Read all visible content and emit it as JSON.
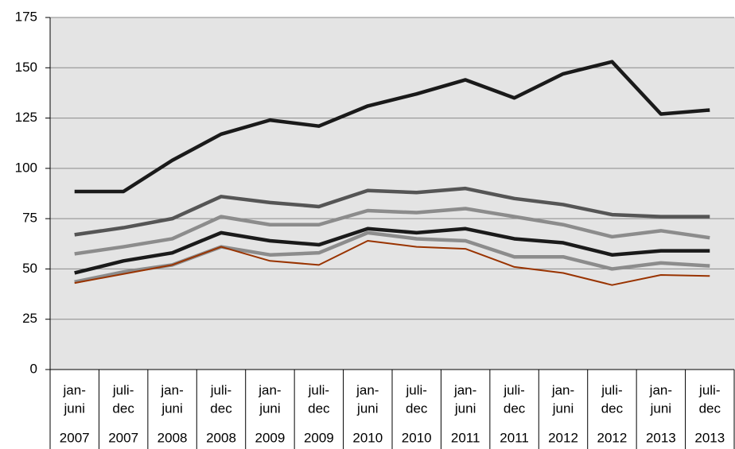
{
  "chart_data": {
    "type": "line",
    "categories": [
      {
        "period": [
          "jan-",
          "juni"
        ],
        "year": "2007"
      },
      {
        "period": [
          "juli-",
          "dec"
        ],
        "year": "2007"
      },
      {
        "period": [
          "jan-",
          "juni"
        ],
        "year": "2008"
      },
      {
        "period": [
          "juli-",
          "dec"
        ],
        "year": "2008"
      },
      {
        "period": [
          "jan-",
          "juni"
        ],
        "year": "2009"
      },
      {
        "period": [
          "juli-",
          "dec"
        ],
        "year": "2009"
      },
      {
        "period": [
          "jan-",
          "juni"
        ],
        "year": "2010"
      },
      {
        "period": [
          "juli-",
          "dec"
        ],
        "year": "2010"
      },
      {
        "period": [
          "jan-",
          "juni"
        ],
        "year": "2011"
      },
      {
        "period": [
          "juli-",
          "dec"
        ],
        "year": "2011"
      },
      {
        "period": [
          "jan-",
          "juni"
        ],
        "year": "2012"
      },
      {
        "period": [
          "juli-",
          "dec"
        ],
        "year": "2012"
      },
      {
        "period": [
          "jan-",
          "juni"
        ],
        "year": "2013"
      },
      {
        "period": [
          "juli-",
          "dec"
        ],
        "year": "2013"
      }
    ],
    "series": [
      {
        "color": "#1a1a1a",
        "width": 4.5,
        "values": [
          88.5,
          88.5,
          104,
          117,
          124,
          121,
          131,
          137,
          144,
          135,
          147,
          153,
          127,
          129
        ]
      },
      {
        "color": "#555555",
        "width": 4.5,
        "values": [
          67,
          70.5,
          75,
          86,
          83,
          81,
          89,
          88,
          90,
          85,
          82,
          77,
          76,
          76
        ]
      },
      {
        "color": "#8c8c8c",
        "width": 4.5,
        "values": [
          57.5,
          61,
          65,
          76,
          72,
          72,
          79,
          78,
          80,
          76,
          72,
          66,
          69,
          65.5
        ]
      },
      {
        "color": "#1a1a1a",
        "width": 4.5,
        "values": [
          48,
          54,
          58,
          68,
          64,
          62,
          70,
          68,
          70,
          65,
          63,
          57,
          59,
          59
        ]
      },
      {
        "color": "#8c8c8c",
        "width": 4.5,
        "values": [
          43.5,
          48.5,
          52,
          61,
          57,
          58,
          68,
          65,
          64,
          56,
          56,
          50,
          53,
          51.5
        ]
      },
      {
        "color": "#993300",
        "width": 2,
        "values": [
          43,
          47.5,
          52,
          61,
          54,
          52,
          64,
          61,
          60,
          51,
          48,
          42,
          47,
          46.5
        ]
      }
    ],
    "ylim": [
      0,
      175
    ],
    "yticks": [
      0,
      25,
      50,
      75,
      100,
      125,
      150,
      175
    ],
    "grid": true
  }
}
